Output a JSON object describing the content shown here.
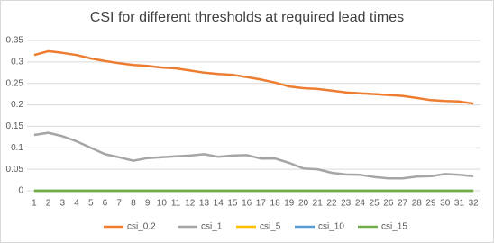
{
  "chart_data": {
    "type": "line",
    "title": "CSI for different thresholds at required lead times",
    "categories": [
      "1",
      "2",
      "3",
      "4",
      "5",
      "6",
      "7",
      "8",
      "9",
      "10",
      "11",
      "12",
      "13",
      "14",
      "15",
      "16",
      "17",
      "18",
      "19",
      "20",
      "21",
      "22",
      "23",
      "24",
      "25",
      "26",
      "27",
      "28",
      "29",
      "30",
      "31",
      "32"
    ],
    "series": [
      {
        "name": "csi_0.2",
        "color": "#ed7d31",
        "values": [
          0.316,
          0.325,
          0.321,
          0.316,
          0.308,
          0.302,
          0.297,
          0.293,
          0.291,
          0.287,
          0.285,
          0.28,
          0.275,
          0.272,
          0.27,
          0.265,
          0.259,
          0.252,
          0.243,
          0.239,
          0.237,
          0.233,
          0.229,
          0.227,
          0.225,
          0.223,
          0.221,
          0.216,
          0.211,
          0.209,
          0.208,
          0.203
        ]
      },
      {
        "name": "csi_1",
        "color": "#a5a5a5",
        "values": [
          0.13,
          0.135,
          0.127,
          0.115,
          0.1,
          0.085,
          0.078,
          0.07,
          0.076,
          0.078,
          0.08,
          0.082,
          0.085,
          0.079,
          0.082,
          0.083,
          0.075,
          0.075,
          0.065,
          0.052,
          0.05,
          0.042,
          0.038,
          0.037,
          0.032,
          0.029,
          0.029,
          0.033,
          0.034,
          0.039,
          0.037,
          0.034
        ]
      },
      {
        "name": "csi_5",
        "color": "#ffc000",
        "values": [
          0,
          0,
          0,
          0,
          0,
          0,
          0,
          0,
          0,
          0,
          0,
          0,
          0,
          0,
          0,
          0,
          0,
          0,
          0,
          0,
          0,
          0,
          0,
          0,
          0,
          0,
          0,
          0,
          0,
          0,
          0,
          0
        ]
      },
      {
        "name": "csi_10",
        "color": "#5b9bd5",
        "values": [
          0,
          0,
          0,
          0,
          0,
          0,
          0,
          0,
          0,
          0,
          0,
          0,
          0,
          0,
          0,
          0,
          0,
          0,
          0,
          0,
          0,
          0,
          0,
          0,
          0,
          0,
          0,
          0,
          0,
          0,
          0,
          0
        ]
      },
      {
        "name": "csi_15",
        "color": "#70ad47",
        "values": [
          0,
          0,
          0,
          0,
          0,
          0,
          0,
          0,
          0,
          0,
          0,
          0,
          0,
          0,
          0,
          0,
          0,
          0,
          0,
          0,
          0,
          0,
          0,
          0,
          0,
          0,
          0,
          0,
          0,
          0,
          0,
          0
        ]
      }
    ],
    "ylim": [
      0,
      0.35
    ],
    "yticks": [
      0,
      0.05,
      0.1,
      0.15,
      0.2,
      0.25,
      0.3,
      0.35
    ],
    "grid": true,
    "legend": "bottom"
  }
}
